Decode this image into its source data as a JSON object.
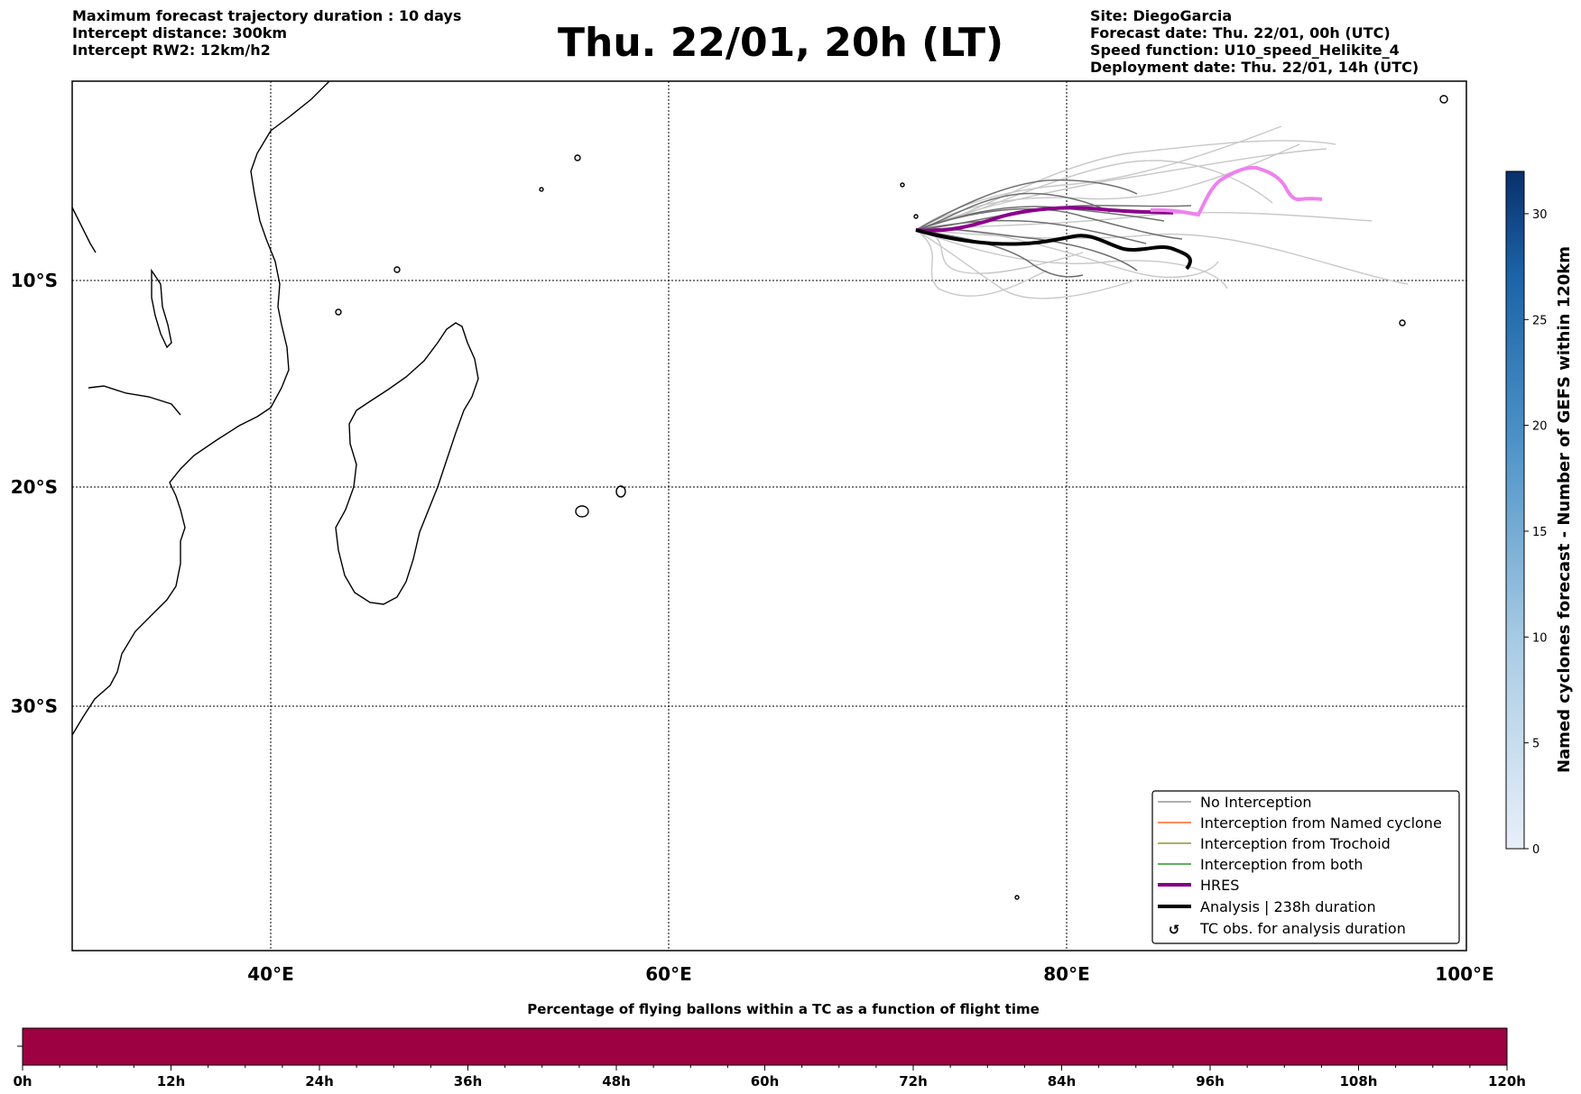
{
  "header_left": {
    "duration": "Maximum forecast trajectory duration : 10 days",
    "intercept_distance": "Intercept distance: 300km",
    "intercept_rw2": "Intercept RW2: 12km/h2"
  },
  "title": "Thu. 22/01, 20h (LT)",
  "header_right": {
    "site": "Site: DiegoGarcia",
    "forecast_date": "Forecast date: Thu. 22/01, 00h (UTC)",
    "speed_function": "Speed function: U10_speed_Helikite_4",
    "deployment_date": "Deployment date: Thu. 22/01, 14h (UTC)"
  },
  "map": {
    "lon_labels": [
      "40°E",
      "60°E",
      "80°E",
      "100°E"
    ],
    "lat_labels": [
      "10°S",
      "20°S",
      "30°S"
    ],
    "lon_range": [
      30,
      100
    ],
    "lat_range": [
      -42,
      0
    ]
  },
  "legend": {
    "items": [
      {
        "label": "No Interception",
        "color": "#808080"
      },
      {
        "label": "Interception from Named cyclone",
        "color": "#ff4500"
      },
      {
        "label": "Interception from Trochoid",
        "color": "#808000"
      },
      {
        "label": "Interception from both",
        "color": "#008000"
      },
      {
        "label": "HRES",
        "color": "#800080"
      },
      {
        "label": "Analysis | 238h duration",
        "color": "#000000"
      },
      {
        "label": "TC obs. for analysis duration",
        "color": "#000000"
      }
    ]
  },
  "colorbar_right": {
    "label": "Named cyclones forecast - Number of GEFS within 120km",
    "ticks": [
      "0",
      "5",
      "10",
      "15",
      "20",
      "25",
      "30"
    ],
    "min": 0,
    "max": 32
  },
  "colorbar_bottom": {
    "title": "Percentage of flying ballons within a TC as a function of flight time",
    "ticks": [
      "0h",
      "12h",
      "24h",
      "36h",
      "48h",
      "60h",
      "72h",
      "84h",
      "96h",
      "108h",
      "120h"
    ],
    "fill_color": "#9e0142"
  }
}
